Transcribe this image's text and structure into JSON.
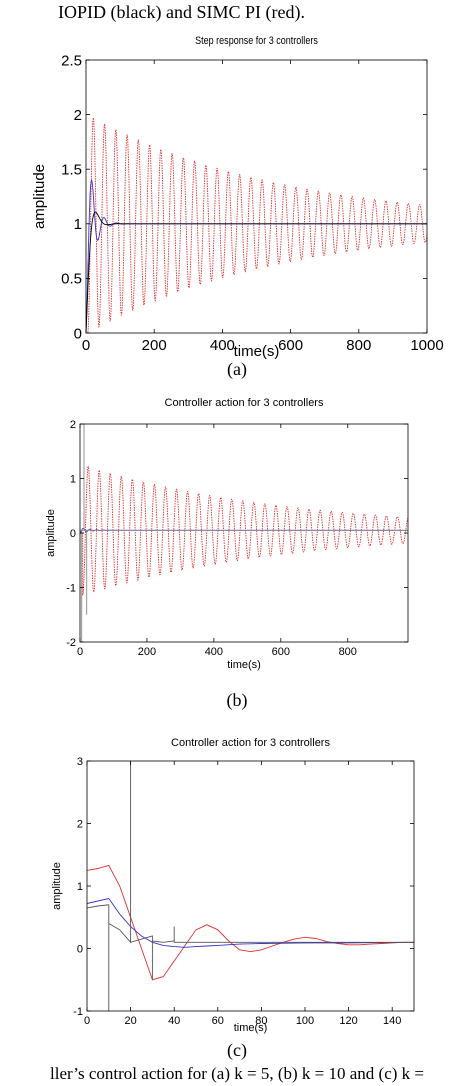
{
  "page": {
    "header_text": "IOPID (black) and SIMC PI (red).",
    "captions": [
      "(a)",
      "(b)",
      "(c)"
    ],
    "footer_text": "ller’s control action for (a) k = 5, (b) k = 10 and (c) k ="
  },
  "chart_data": [
    {
      "id": "a",
      "type": "line",
      "title": "Step response for 3 controllers",
      "xlabel": "time(s)",
      "ylabel": "amplitude",
      "xlim": [
        0,
        1000
      ],
      "ylim": [
        0,
        2.5
      ],
      "x_ticks": [
        0,
        200,
        400,
        600,
        800,
        1000
      ],
      "y_ticks": [
        0,
        0.5,
        1,
        1.5,
        2,
        2.5
      ],
      "x_tick_labels": [
        "0",
        "200",
        "400",
        "600",
        "800",
        "1000"
      ],
      "y_tick_labels": [
        "0",
        "0.5",
        "1",
        "1.5",
        "2",
        "2.5"
      ],
      "grid": false,
      "series": [
        {
          "color": "#e03030",
          "kind": "decay_osc",
          "final": 1.0,
          "amp0": 1.0,
          "period": 33,
          "tau": 560,
          "start": 5
        },
        {
          "color": "#3333cc",
          "kind": "damped",
          "final": 1.0,
          "overshoot": 0.38,
          "peak_t": 18,
          "settle": 90
        },
        {
          "color": "#000000",
          "kind": "damped",
          "final": 1.0,
          "overshoot": 0.08,
          "peak_t": 35,
          "settle": 120
        }
      ]
    },
    {
      "id": "b",
      "type": "line",
      "title": "Controller action for 3 controllers",
      "xlabel": "time(s)",
      "ylabel": "amplitude",
      "xlim": [
        0,
        980
      ],
      "ylim": [
        -2,
        2
      ],
      "x_ticks": [
        0,
        200,
        400,
        600,
        800
      ],
      "y_ticks": [
        -2,
        -1,
        0,
        1,
        2
      ],
      "x_tick_labels": [
        "0",
        "200",
        "400",
        "600",
        "800"
      ],
      "y_tick_labels": [
        "-2",
        "-1",
        "0",
        "1",
        "2"
      ],
      "grid": false,
      "series": [
        {
          "color": "#e03030",
          "kind": "decay_osc",
          "final": 0.05,
          "amp0": 1.2,
          "period": 33,
          "tau": 600,
          "start": 8
        },
        {
          "color": "#3333cc",
          "kind": "damped",
          "final": 0.05,
          "overshoot": 0.7,
          "peak_t": 10,
          "settle": 80
        },
        {
          "color": "#888888",
          "kind": "spikes",
          "final": 0.05,
          "spikes": [
            [
              5,
              -2
            ],
            [
              12,
              2
            ],
            [
              20,
              -1.5
            ]
          ]
        }
      ]
    },
    {
      "id": "c",
      "type": "line",
      "title": "Controller action for 3 controllers",
      "xlabel": "time(s)",
      "ylabel": "amplitude",
      "xlim": [
        0,
        150
      ],
      "ylim": [
        -1,
        3
      ],
      "x_ticks": [
        0,
        20,
        40,
        60,
        80,
        100,
        120,
        140
      ],
      "y_ticks": [
        -1,
        0,
        1,
        2,
        3
      ],
      "x_tick_labels": [
        "0",
        "20",
        "40",
        "60",
        "80",
        "100",
        "120",
        "140"
      ],
      "y_tick_labels": [
        "-1",
        "0",
        "1",
        "2",
        "3"
      ],
      "grid": false,
      "series": [
        {
          "color": "#e03030",
          "points": [
            [
              0,
              1.25
            ],
            [
              5,
              1.28
            ],
            [
              10,
              1.33
            ],
            [
              15,
              1.0
            ],
            [
              20,
              0.5
            ],
            [
              25,
              0.0
            ],
            [
              30,
              -0.5
            ],
            [
              35,
              -0.45
            ],
            [
              40,
              -0.2
            ],
            [
              45,
              0.05
            ],
            [
              50,
              0.3
            ],
            [
              55,
              0.38
            ],
            [
              60,
              0.3
            ],
            [
              65,
              0.12
            ],
            [
              70,
              -0.02
            ],
            [
              75,
              -0.05
            ],
            [
              80,
              -0.02
            ],
            [
              85,
              0.04
            ],
            [
              90,
              0.1
            ],
            [
              95,
              0.15
            ],
            [
              100,
              0.18
            ],
            [
              105,
              0.16
            ],
            [
              110,
              0.11
            ],
            [
              115,
              0.08
            ],
            [
              120,
              0.06
            ],
            [
              125,
              0.06
            ],
            [
              130,
              0.07
            ],
            [
              135,
              0.08
            ],
            [
              140,
              0.09
            ],
            [
              145,
              0.1
            ],
            [
              150,
              0.1
            ]
          ]
        },
        {
          "color": "#3333cc",
          "points": [
            [
              0,
              0.72
            ],
            [
              5,
              0.76
            ],
            [
              10,
              0.8
            ],
            [
              15,
              0.55
            ],
            [
              20,
              0.35
            ],
            [
              25,
              0.2
            ],
            [
              30,
              0.1
            ],
            [
              35,
              0.05
            ],
            [
              40,
              0.03
            ],
            [
              45,
              0.02
            ],
            [
              50,
              0.03
            ],
            [
              55,
              0.04
            ],
            [
              60,
              0.05
            ],
            [
              70,
              0.07
            ],
            [
              80,
              0.08
            ],
            [
              100,
              0.09
            ],
            [
              120,
              0.09
            ],
            [
              150,
              0.1
            ]
          ]
        },
        {
          "color": "#555555",
          "points": [
            [
              0,
              0.65
            ],
            [
              5,
              0.68
            ],
            [
              10,
              0.7
            ],
            [
              10,
              -1
            ],
            [
              10,
              0.4
            ],
            [
              15,
              0.3
            ],
            [
              20,
              0.1
            ],
            [
              20,
              3.0
            ],
            [
              20,
              0.1
            ],
            [
              25,
              0.15
            ],
            [
              30,
              0.2
            ],
            [
              30,
              -0.5
            ],
            [
              30,
              0.12
            ],
            [
              35,
              0.1
            ],
            [
              40,
              0.12
            ],
            [
              40,
              0.35
            ],
            [
              40,
              0.1
            ],
            [
              50,
              0.1
            ],
            [
              60,
              0.1
            ],
            [
              80,
              0.1
            ],
            [
              100,
              0.1
            ],
            [
              120,
              0.1
            ],
            [
              150,
              0.1
            ]
          ]
        }
      ]
    }
  ]
}
